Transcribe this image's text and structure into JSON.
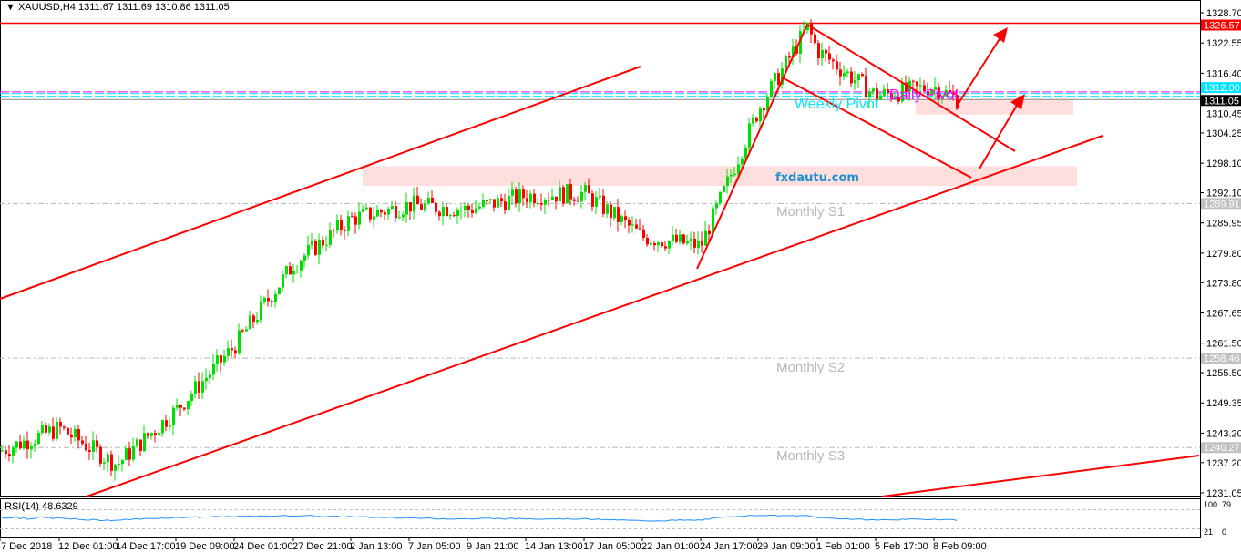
{
  "header": {
    "symbol": "XAUUSD,H4",
    "ohlc": "1311.67 1311.69 1310.86 1311.05"
  },
  "brand": "fxdautu.com",
  "colors": {
    "bull": "#00e000",
    "bear": "#ff0000",
    "trend": "#ff0000",
    "pivot_weekly": "#00e5ff",
    "pivot_daily": "#ff00ff",
    "rsi": "#1e90ff"
  },
  "levels": {
    "resistance": {
      "price": "1326.57",
      "value": 1326.57
    },
    "weekly_pivot": {
      "label": "Weekly Pivot",
      "price": "1312.00",
      "value": 1312.0
    },
    "daily_pivot": {
      "label": "Daily Pivot",
      "value": 1312.6
    },
    "current": {
      "price": "1311.05",
      "value": 1311.05
    },
    "s1": {
      "label": "Monthly S1",
      "price": "1289.91",
      "value": 1289.91
    },
    "s2": {
      "label": "Monthly S2",
      "price": "1258.46",
      "value": 1258.46
    },
    "s3": {
      "label": "Monthly S3",
      "price": "1240.27",
      "value": 1240.27
    }
  },
  "chart_data": {
    "type": "candlestick",
    "timeframe": "H4",
    "ylim": [
      1231.05,
      1328.7
    ],
    "y_ticks": [
      "1328.70",
      "1322.55",
      "1316.40",
      "1310.45",
      "1304.25",
      "1298.10",
      "1292.10",
      "1285.95",
      "1279.80",
      "1273.80",
      "1267.65",
      "1261.50",
      "1255.50",
      "1249.35",
      "1243.20",
      "1237.20",
      "1231.05"
    ],
    "x_ticks": [
      "7 Dec 2018",
      "12 Dec 01:00",
      "14 Dec 17:00",
      "19 Dec 09:00",
      "24 Dec 01:00",
      "27 Dec 21:00",
      "2 Jan 13:00",
      "7 Jan 05:00",
      "9 Jan 21:00",
      "14 Jan 13:00",
      "17 Jan 05:00",
      "22 Jan 01:00",
      "24 Jan 17:00",
      "29 Jan 09:00",
      "1 Feb 01:00",
      "5 Feb 17:00",
      "8 Feb 09:00"
    ],
    "approx_close_at_ticks": [
      1239.6,
      1244.2,
      1236.8,
      1247.9,
      1260.9,
      1277.6,
      1286.8,
      1289.6,
      1288.7,
      1291.5,
      1292.0,
      1283.1,
      1281.3,
      1309.0,
      1321.0,
      1311.8,
      1313.7
    ],
    "last_close": 1311.05,
    "peak": 1325.7,
    "zones": [
      {
        "from": 1293.5,
        "to": 1297.5
      },
      {
        "from": 1308.0,
        "to": 1311.2
      }
    ],
    "rsi": {
      "label": "RSI(14) 48.6329",
      "value": 48.6329,
      "levels": [
        "100",
        "79",
        "21",
        "0"
      ]
    }
  }
}
